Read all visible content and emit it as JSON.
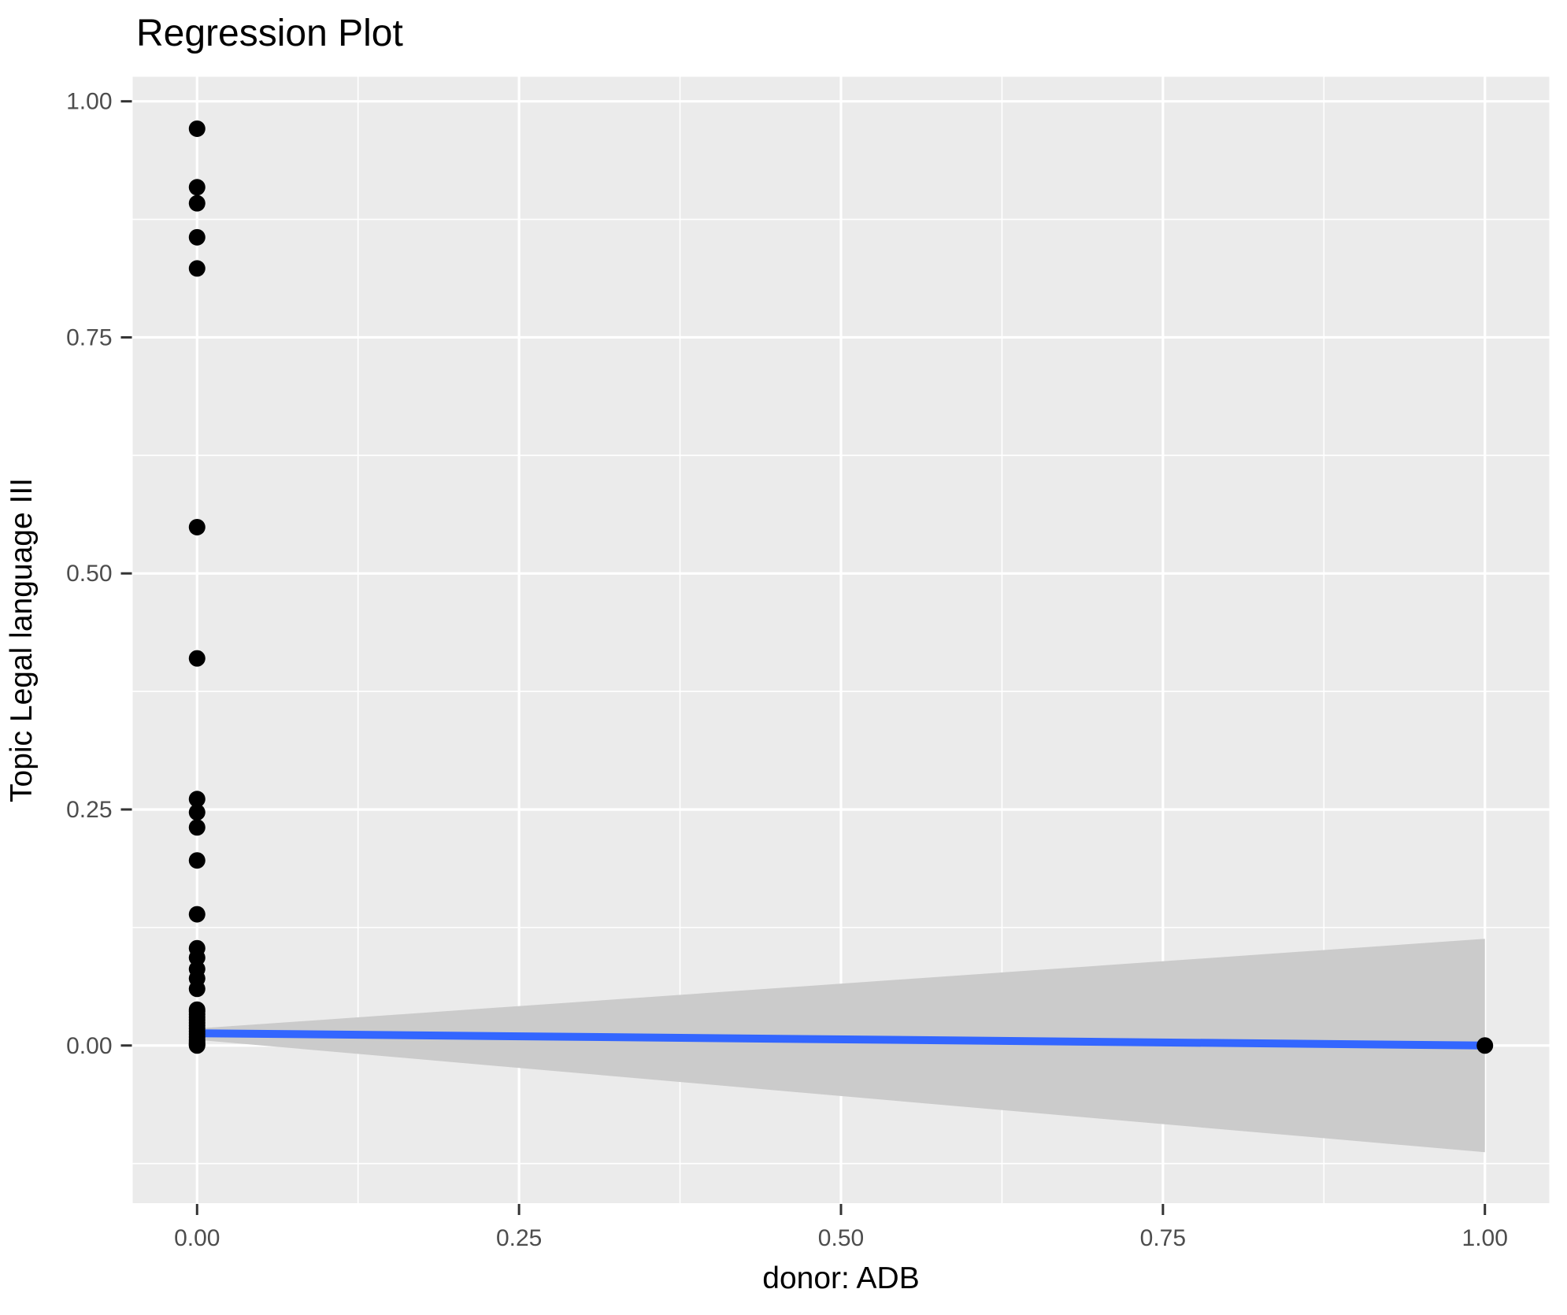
{
  "chart_data": {
    "type": "scatter",
    "title": "Regression Plot",
    "xlabel": "donor: ADB",
    "ylabel": "Topic Legal language III",
    "x_ticks": [
      0,
      0.25,
      0.5,
      0.75,
      1
    ],
    "y_ticks": [
      0,
      0.25,
      0.5,
      0.75,
      1
    ],
    "x_tick_labels": [
      "0.00",
      "0.25",
      "0.50",
      "0.75",
      "1.00"
    ],
    "y_tick_labels": [
      "0.00",
      "0.25",
      "0.50",
      "0.75",
      "1.00"
    ],
    "xlim": [
      -0.05,
      1.05
    ],
    "ylim": [
      -0.167,
      1.026
    ],
    "grid": {
      "major": true,
      "minor": true
    },
    "legend": "none",
    "series": [
      {
        "name": "observations",
        "type": "scatter",
        "points": [
          [
            0,
            0.971
          ],
          [
            0,
            0.909
          ],
          [
            0,
            0.892
          ],
          [
            0,
            0.856
          ],
          [
            0,
            0.823
          ],
          [
            0,
            0.549
          ],
          [
            0,
            0.41
          ],
          [
            0,
            0.261
          ],
          [
            0,
            0.247
          ],
          [
            0,
            0.231
          ],
          [
            0,
            0.196
          ],
          [
            0,
            0.139
          ],
          [
            0,
            0.103
          ],
          [
            0,
            0.093
          ],
          [
            0,
            0.081
          ],
          [
            0,
            0.071
          ],
          [
            0,
            0.06
          ],
          [
            0,
            0.038
          ],
          [
            0,
            0.036
          ],
          [
            0,
            0.033
          ],
          [
            0,
            0.03
          ],
          [
            0,
            0.027
          ],
          [
            0,
            0.024
          ],
          [
            0,
            0.021
          ],
          [
            0,
            0.018
          ],
          [
            0,
            0.015
          ],
          [
            0,
            0.012
          ],
          [
            0,
            0.009
          ],
          [
            0,
            0.006
          ],
          [
            0,
            0.004
          ],
          [
            0,
            0.002
          ],
          [
            0,
            0.001
          ],
          [
            0,
            0.0
          ],
          [
            1,
            0.0
          ]
        ]
      },
      {
        "name": "regression_fit",
        "type": "line",
        "x": [
          0,
          1
        ],
        "y": [
          0.013,
          0.0
        ]
      },
      {
        "name": "confidence_band",
        "type": "area",
        "x": [
          0,
          1
        ],
        "upper": [
          0.018,
          0.113
        ],
        "lower": [
          0.006,
          -0.113
        ]
      }
    ],
    "colors": {
      "background": "#FFFFFF",
      "panel": "#EBEBEB",
      "grid": "#FFFFFF",
      "band": "#CBCBCB",
      "line": "#3366FF",
      "point": "#000000",
      "tick_text": "#4D4D4D",
      "tick_mark": "#333333",
      "axis_text": "#000000",
      "title_text": "#000000"
    }
  }
}
